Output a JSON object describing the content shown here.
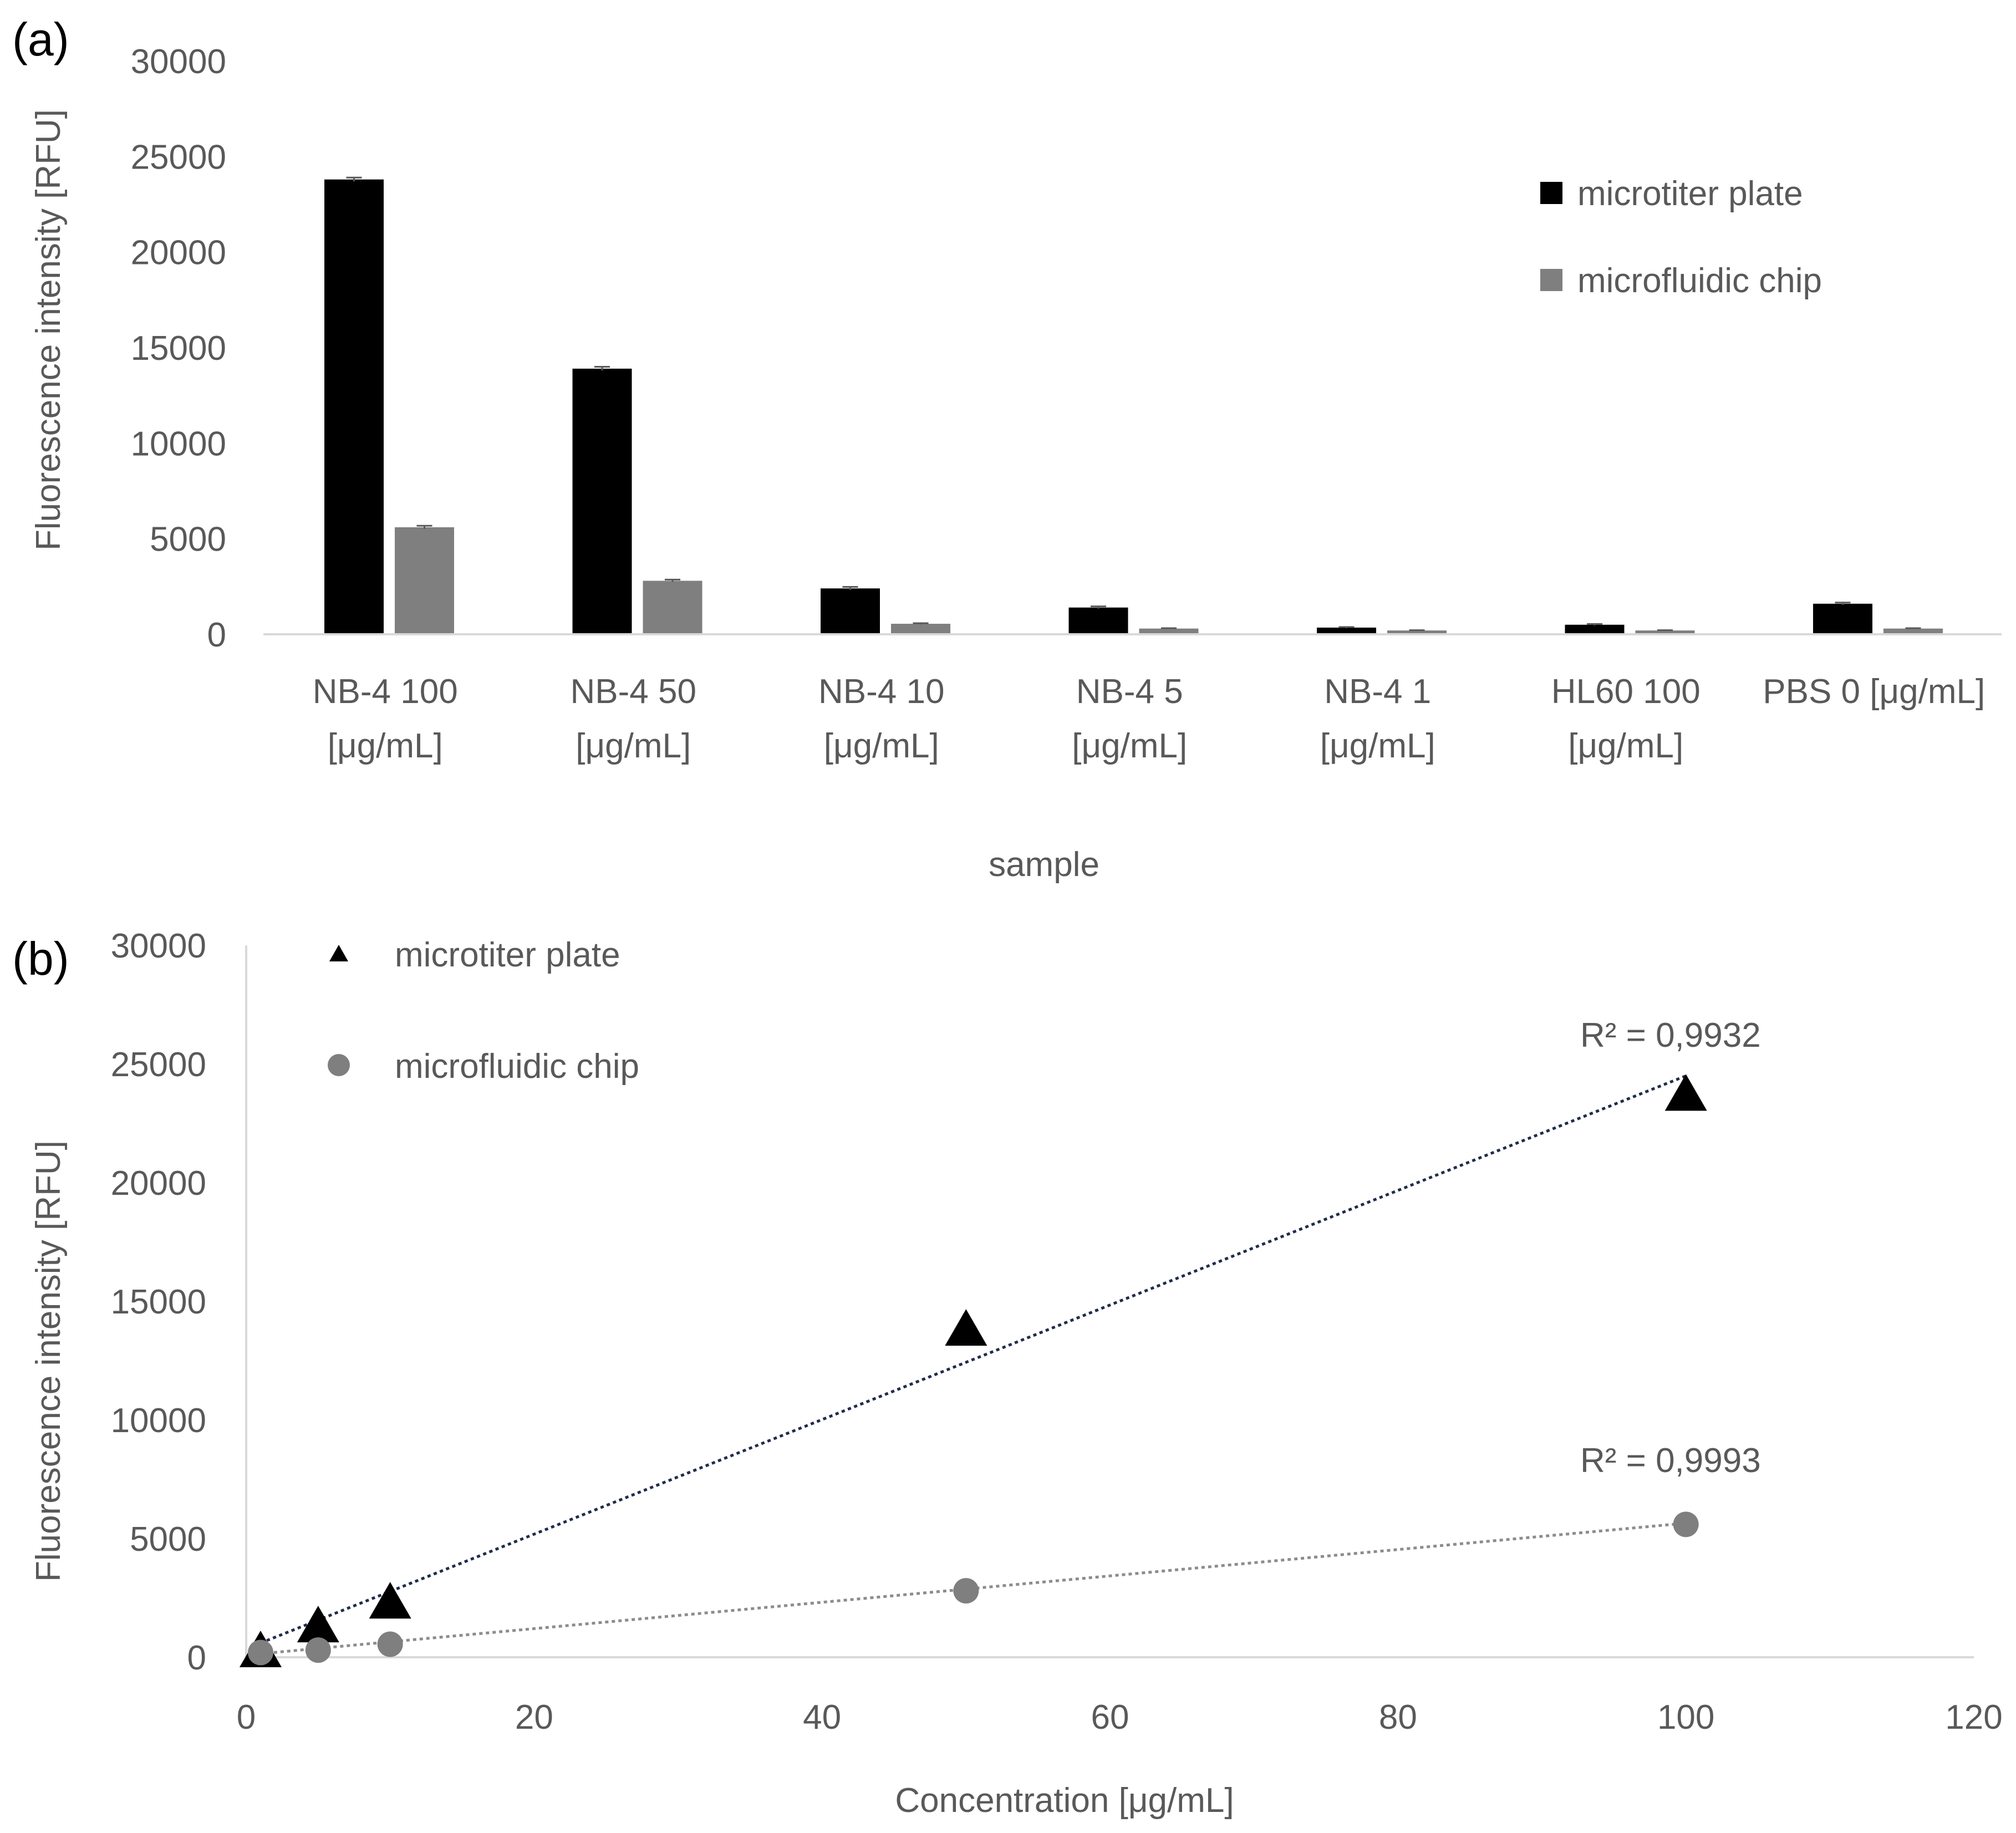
{
  "chart_data": [
    {
      "panel_label": "(a)",
      "type": "bar",
      "xlabel": "sample",
      "ylabel": "Fluorescence intensity [RFU]",
      "ylim": [
        0,
        30000
      ],
      "yticks": [
        "0",
        "5000",
        "10000",
        "15000",
        "20000",
        "25000",
        "30000"
      ],
      "categories": [
        [
          "NB-4 100",
          "[μg/mL]"
        ],
        [
          "NB-4 50",
          "[μg/mL]"
        ],
        [
          "NB-4 10",
          "[μg/mL]"
        ],
        [
          "NB-4 5",
          "[μg/mL]"
        ],
        [
          "NB-4 1",
          "[μg/mL]"
        ],
        [
          "HL60 100",
          "[μg/mL]"
        ],
        [
          "PBS 0 [μg/mL]"
        ]
      ],
      "series": [
        {
          "name": "microtiter plate",
          "color": "#000000",
          "values": [
            23800,
            13900,
            2400,
            1400,
            350,
            500,
            1600
          ],
          "errors": [
            100,
            100,
            80,
            60,
            30,
            40,
            60
          ]
        },
        {
          "name": "microfluidic chip",
          "color": "#7f7f7f",
          "values": [
            5600,
            2800,
            550,
            300,
            200,
            200,
            300
          ],
          "errors": [
            80,
            60,
            30,
            20,
            15,
            15,
            20
          ]
        }
      ],
      "legend": "top-right",
      "grid": false
    },
    {
      "panel_label": "(b)",
      "type": "scatter",
      "xlabel": "Concentration [μg/mL]",
      "ylabel": "Fluorescence intensity [RFU]",
      "xlim": [
        0,
        120
      ],
      "ylim": [
        0,
        30000
      ],
      "xticks": [
        "0",
        "20",
        "40",
        "60",
        "80",
        "100",
        "120"
      ],
      "yticks": [
        "0",
        "5000",
        "10000",
        "15000",
        "20000",
        "25000",
        "30000"
      ],
      "series": [
        {
          "name": "microtiter plate",
          "marker": "triangle",
          "color": "#000000",
          "x": [
            1,
            5,
            10,
            50,
            100
          ],
          "y": [
            350,
            1400,
            2400,
            13900,
            23800
          ],
          "trendline": {
            "x": [
              1,
              100
            ],
            "y": [
              600,
              24500
            ],
            "color": "#1f2d4a"
          },
          "r2_label": "R² = 0,9932"
        },
        {
          "name": "microfluidic chip",
          "marker": "circle",
          "color": "#7f7f7f",
          "x": [
            1,
            5,
            10,
            50,
            100
          ],
          "y": [
            200,
            300,
            550,
            2800,
            5600
          ],
          "trendline": {
            "x": [
              1,
              100
            ],
            "y": [
              150,
              5650
            ],
            "color": "#8c8c8c"
          },
          "r2_label": "R² = 0,9993"
        }
      ],
      "legend": "top-left",
      "grid": false
    }
  ]
}
